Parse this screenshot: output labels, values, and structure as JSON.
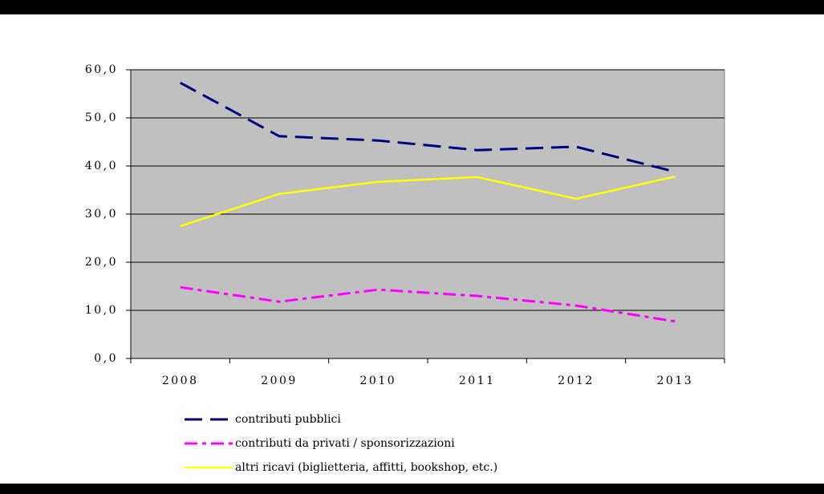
{
  "chart_data": {
    "type": "line",
    "categories": [
      "2008",
      "2009",
      "2010",
      "2011",
      "2012",
      "2013"
    ],
    "series": [
      {
        "name": "contributi pubblici",
        "color": "#000080",
        "values": [
          57.3,
          46.2,
          45.3,
          43.3,
          44.0,
          38.8
        ]
      },
      {
        "name": "contributi da privati / sponsorizzazioni",
        "color": "#ff00ff",
        "values": [
          14.8,
          11.8,
          14.3,
          13.0,
          11.0,
          7.7
        ]
      },
      {
        "name": "altri ricavi (biglietteria, affitti, bookshop, etc.)",
        "color": "#ffff00",
        "values": [
          27.5,
          34.2,
          36.7,
          37.7,
          33.2,
          37.8
        ]
      }
    ],
    "ylim": [
      0,
      60
    ],
    "yticks": [
      {
        "value": 0,
        "label": "0,0"
      },
      {
        "value": 10,
        "label": "10,0"
      },
      {
        "value": 20,
        "label": "20,0"
      },
      {
        "value": 30,
        "label": "30,0"
      },
      {
        "value": 40,
        "label": "40,0"
      },
      {
        "value": 50,
        "label": "50,0"
      },
      {
        "value": 60,
        "label": "60,0"
      }
    ],
    "grid": true,
    "legend": "bottom"
  }
}
